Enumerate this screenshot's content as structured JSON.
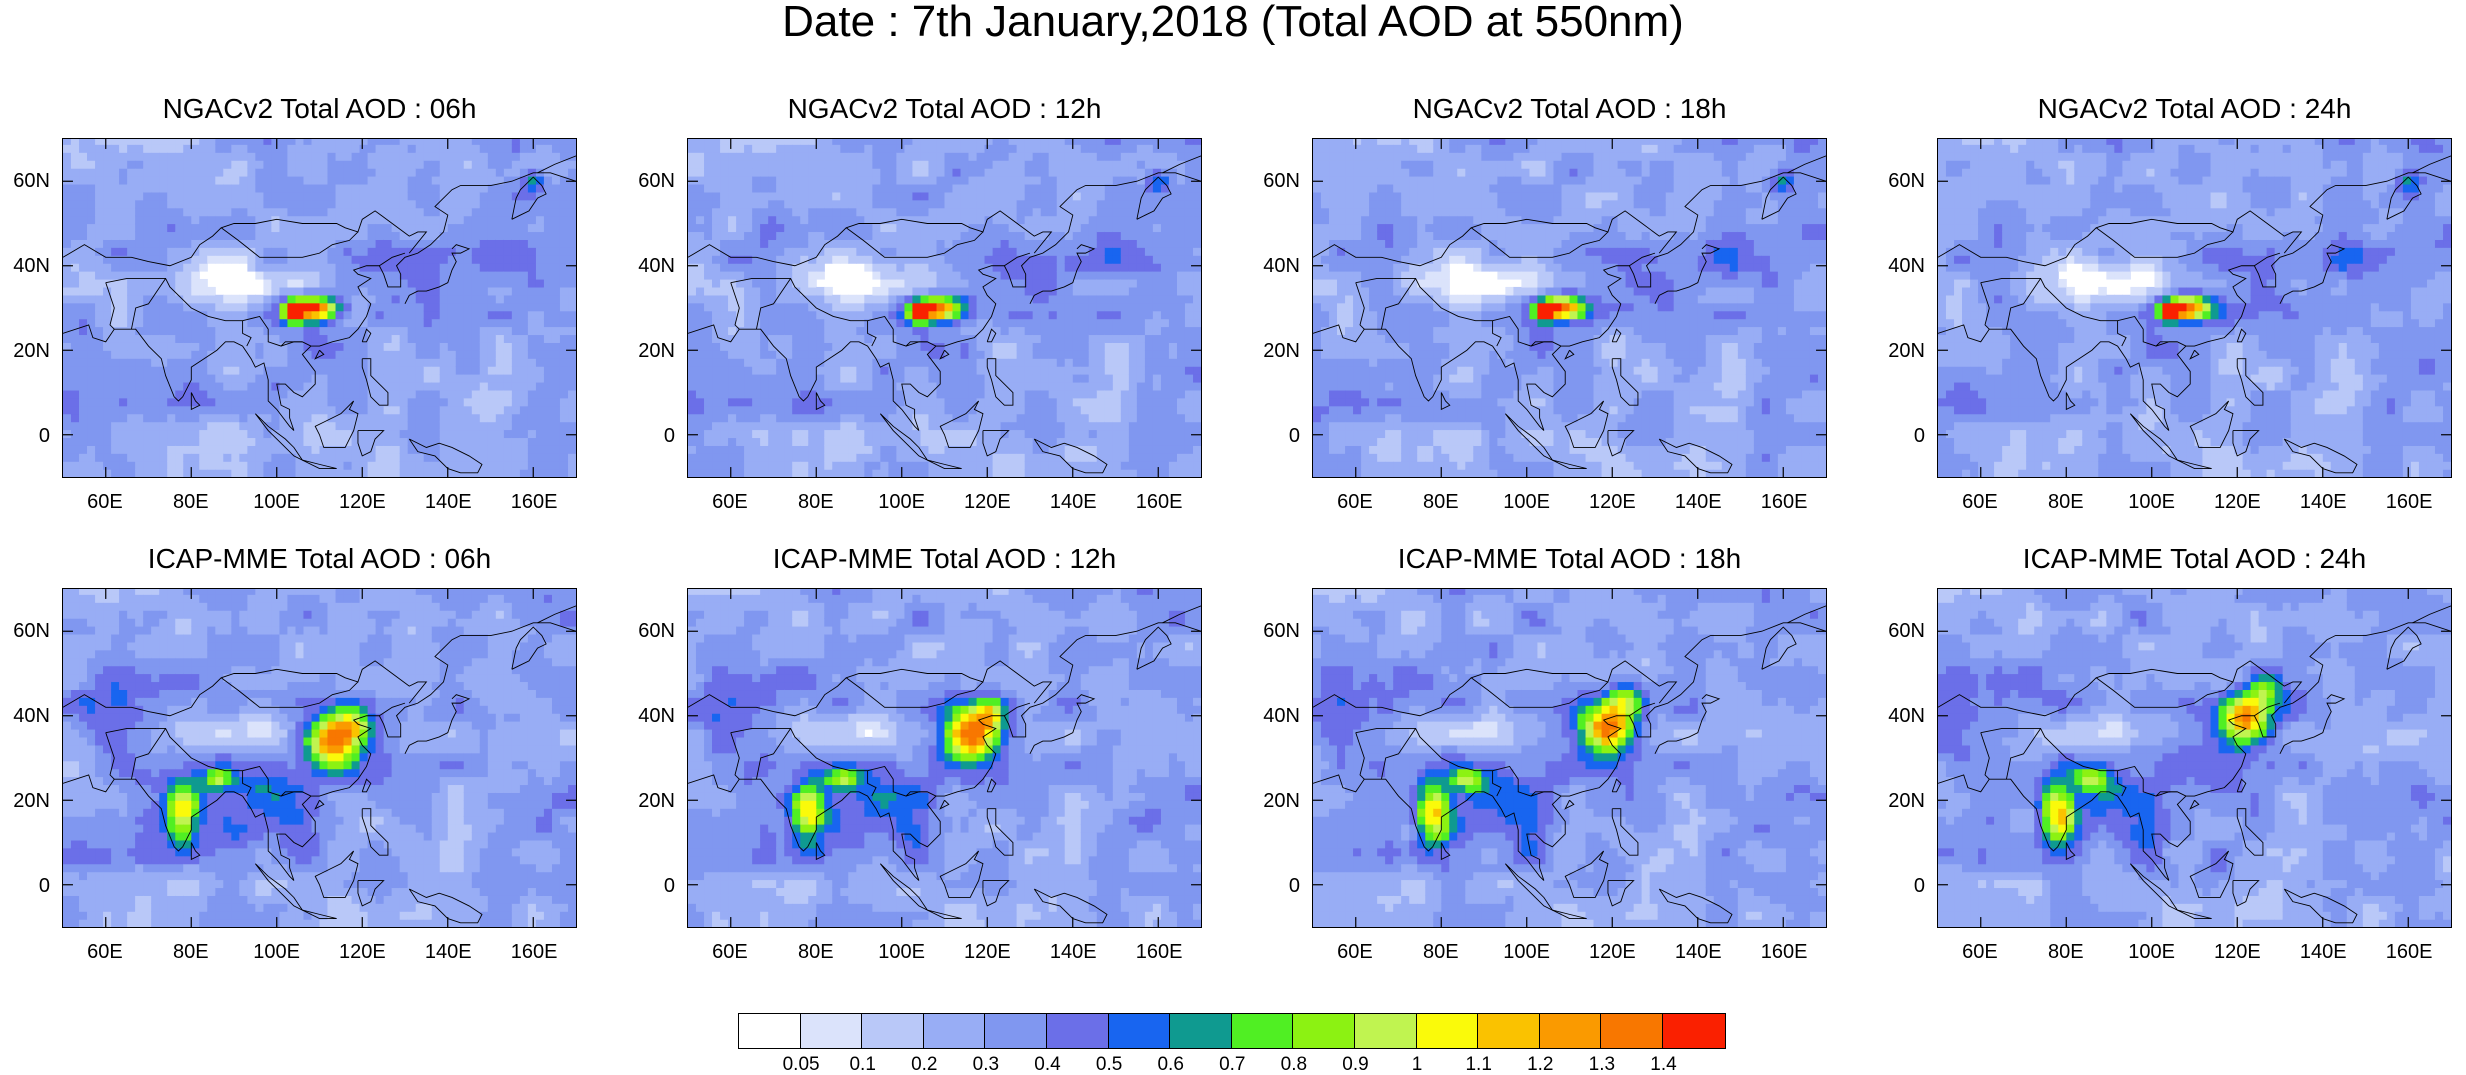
{
  "title": "Date : 7th January,2018 (Total AOD at 550nm)",
  "lon_ticks": [
    "60E",
    "80E",
    "100E",
    "120E",
    "140E",
    "160E"
  ],
  "lat_ticks": [
    "60N",
    "40N",
    "20N",
    "0"
  ],
  "map_extent": {
    "lon": [
      50,
      170
    ],
    "lat": [
      -10,
      70
    ]
  },
  "panels": [
    {
      "title": "NGACv2 Total AOD : 06h",
      "model": "NGACv2",
      "hour": "06h"
    },
    {
      "title": "NGACv2 Total AOD : 12h",
      "model": "NGACv2",
      "hour": "12h"
    },
    {
      "title": "NGACv2 Total AOD : 18h",
      "model": "NGACv2",
      "hour": "18h"
    },
    {
      "title": "NGACv2 Total AOD : 24h",
      "model": "NGACv2",
      "hour": "24h"
    },
    {
      "title": "ICAP-MME Total AOD : 06h",
      "model": "ICAP-MME",
      "hour": "06h"
    },
    {
      "title": "ICAP-MME Total AOD : 12h",
      "model": "ICAP-MME",
      "hour": "12h"
    },
    {
      "title": "ICAP-MME Total AOD : 18h",
      "model": "ICAP-MME",
      "hour": "18h"
    },
    {
      "title": "ICAP-MME Total AOD : 24h",
      "model": "ICAP-MME",
      "hour": "24h"
    }
  ],
  "colorbar": {
    "labels": [
      "0.05",
      "0.1",
      "0.2",
      "0.3",
      "0.4",
      "0.5",
      "0.6",
      "0.7",
      "0.8",
      "0.9",
      "1",
      "1.1",
      "1.2",
      "1.3",
      "1.4"
    ],
    "colors": [
      "#ffffff",
      "#dbe3fb",
      "#b9c8f8",
      "#98adf5",
      "#8097f0",
      "#6b6fe8",
      "#1865f0",
      "#0f9a90",
      "#50ef23",
      "#8cf212",
      "#c0f450",
      "#fafa0a",
      "#fac200",
      "#fa9a00",
      "#f87700",
      "#fa2000"
    ]
  },
  "colors": {
    "land_outline": "#000000",
    "background_aod": "#c8d4f8"
  }
}
